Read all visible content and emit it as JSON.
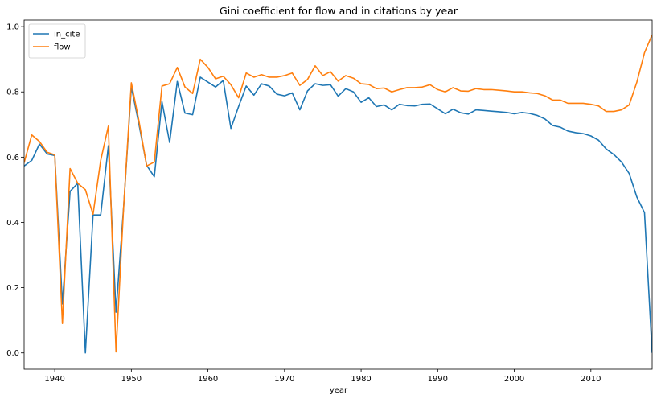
{
  "chart_data": {
    "type": "line",
    "title": "Gini coefficient for flow and in citations by year",
    "xlabel": "year",
    "ylabel": "",
    "xlim": [
      1936,
      2018
    ],
    "ylim": [
      -0.05,
      1.02
    ],
    "x_ticks": [
      1940,
      1950,
      1960,
      1970,
      1980,
      1990,
      2000,
      2010
    ],
    "y_ticks": [
      0.0,
      0.2,
      0.4,
      0.6,
      0.8,
      1.0
    ],
    "x_tick_labels": [
      "1940",
      "1950",
      "1960",
      "1970",
      "1980",
      "1990",
      "2000",
      "2010"
    ],
    "y_tick_labels": [
      "0.0",
      "0.2",
      "0.4",
      "0.6",
      "0.8",
      "1.0"
    ],
    "grid": false,
    "legend_position": "top-left",
    "x": [
      1936,
      1937,
      1938,
      1939,
      1940,
      1941,
      1942,
      1943,
      1944,
      1945,
      1946,
      1947,
      1948,
      1949,
      1950,
      1951,
      1952,
      1953,
      1954,
      1955,
      1956,
      1957,
      1958,
      1959,
      1960,
      1961,
      1962,
      1963,
      1964,
      1965,
      1966,
      1967,
      1968,
      1969,
      1970,
      1971,
      1972,
      1973,
      1974,
      1975,
      1976,
      1977,
      1978,
      1979,
      1980,
      1981,
      1982,
      1983,
      1984,
      1985,
      1986,
      1987,
      1988,
      1989,
      1990,
      1991,
      1992,
      1993,
      1994,
      1995,
      1996,
      1997,
      1998,
      1999,
      2000,
      2001,
      2002,
      2003,
      2004,
      2005,
      2006,
      2007,
      2008,
      2009,
      2010,
      2011,
      2012,
      2013,
      2014,
      2015,
      2016,
      2017,
      2018
    ],
    "series": [
      {
        "name": "in_cite",
        "color": "#1f77b4",
        "values": [
          0.573,
          0.59,
          0.64,
          0.61,
          0.605,
          0.15,
          0.495,
          0.52,
          0.0,
          0.423,
          0.423,
          0.635,
          0.125,
          0.45,
          0.815,
          0.7,
          0.575,
          0.54,
          0.77,
          0.645,
          0.832,
          0.735,
          0.73,
          0.845,
          0.83,
          0.815,
          0.835,
          0.688,
          0.755,
          0.818,
          0.79,
          0.825,
          0.818,
          0.793,
          0.788,
          0.797,
          0.745,
          0.803,
          0.825,
          0.82,
          0.822,
          0.787,
          0.81,
          0.8,
          0.768,
          0.782,
          0.755,
          0.76,
          0.745,
          0.762,
          0.758,
          0.757,
          0.762,
          0.763,
          0.748,
          0.733,
          0.747,
          0.736,
          0.732,
          0.745,
          0.743,
          0.741,
          0.739,
          0.737,
          0.733,
          0.737,
          0.734,
          0.728,
          0.717,
          0.697,
          0.692,
          0.68,
          0.675,
          0.672,
          0.665,
          0.652,
          0.625,
          0.608,
          0.585,
          0.55,
          0.478,
          0.43,
          0.0
        ]
      },
      {
        "name": "flow",
        "color": "#ff7f0e",
        "values": [
          0.583,
          0.668,
          0.648,
          0.615,
          0.607,
          0.09,
          0.565,
          0.52,
          0.5,
          0.425,
          0.59,
          0.695,
          0.003,
          0.45,
          0.828,
          0.71,
          0.573,
          0.585,
          0.818,
          0.825,
          0.875,
          0.815,
          0.795,
          0.9,
          0.875,
          0.84,
          0.848,
          0.822,
          0.782,
          0.858,
          0.845,
          0.853,
          0.845,
          0.845,
          0.85,
          0.858,
          0.82,
          0.838,
          0.88,
          0.85,
          0.862,
          0.833,
          0.85,
          0.842,
          0.825,
          0.823,
          0.81,
          0.812,
          0.8,
          0.807,
          0.813,
          0.813,
          0.815,
          0.822,
          0.807,
          0.8,
          0.813,
          0.803,
          0.802,
          0.81,
          0.807,
          0.807,
          0.805,
          0.803,
          0.8,
          0.8,
          0.797,
          0.795,
          0.788,
          0.775,
          0.775,
          0.765,
          0.765,
          0.765,
          0.762,
          0.757,
          0.74,
          0.74,
          0.745,
          0.76,
          0.83,
          0.92,
          0.975
        ]
      }
    ]
  }
}
